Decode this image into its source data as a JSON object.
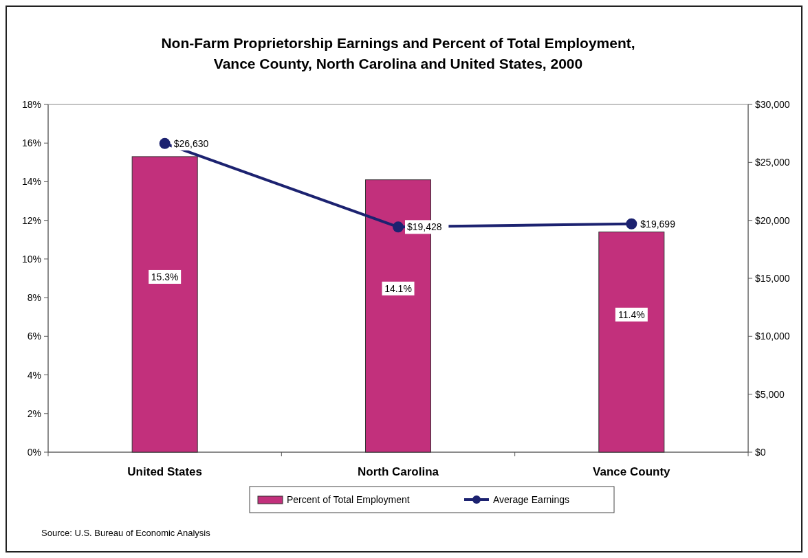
{
  "chart_data": {
    "type": "bar",
    "title": "Non-Farm Proprietorship Earnings and Percent of Total Employment,\nVance County, North Carolina and United States, 2000",
    "categories": [
      "United States",
      "North Carolina",
      "Vance County"
    ],
    "series": [
      {
        "name": "Percent of Total Employment",
        "color": "#c2307c",
        "values": [
          15.3,
          14.1,
          11.4
        ]
      },
      {
        "name": "Average Earnings",
        "type": "line",
        "axis": "y2",
        "color": "#1c2270",
        "values": [
          26630,
          19428,
          19699
        ],
        "marker": "circle"
      }
    ],
    "ylim": [
      0,
      18
    ],
    "yticks": [
      {
        "value": 0,
        "label": "0%"
      },
      {
        "value": 2,
        "label": "2%"
      },
      {
        "value": 4,
        "label": "4%"
      },
      {
        "value": 6,
        "label": "6%"
      },
      {
        "value": 8,
        "label": "8%"
      },
      {
        "value": 10,
        "label": "10%"
      },
      {
        "value": 12,
        "label": "12%"
      },
      {
        "value": 14,
        "label": "14%"
      },
      {
        "value": 16,
        "label": "16%"
      },
      {
        "value": 18,
        "label": "18%"
      }
    ],
    "y2lim": [
      0,
      30000
    ],
    "y2ticks": [
      {
        "value": 0,
        "label": "$0"
      },
      {
        "value": 5000,
        "label": "$5,000"
      },
      {
        "value": 10000,
        "label": "$10,000"
      },
      {
        "value": 15000,
        "label": "$15,000"
      },
      {
        "value": 20000,
        "label": "$20,000"
      },
      {
        "value": 25000,
        "label": "$25,000"
      },
      {
        "value": 30000,
        "label": "$30,000"
      }
    ],
    "value_labels": [
      [
        "15.3%",
        "14.1%",
        "11.4%"
      ],
      [
        "$26,630",
        "$19,428",
        "$19,699"
      ]
    ],
    "legend": "bottom",
    "annotations": [
      "Source: U.S. Bureau of Economic Analysis"
    ]
  }
}
